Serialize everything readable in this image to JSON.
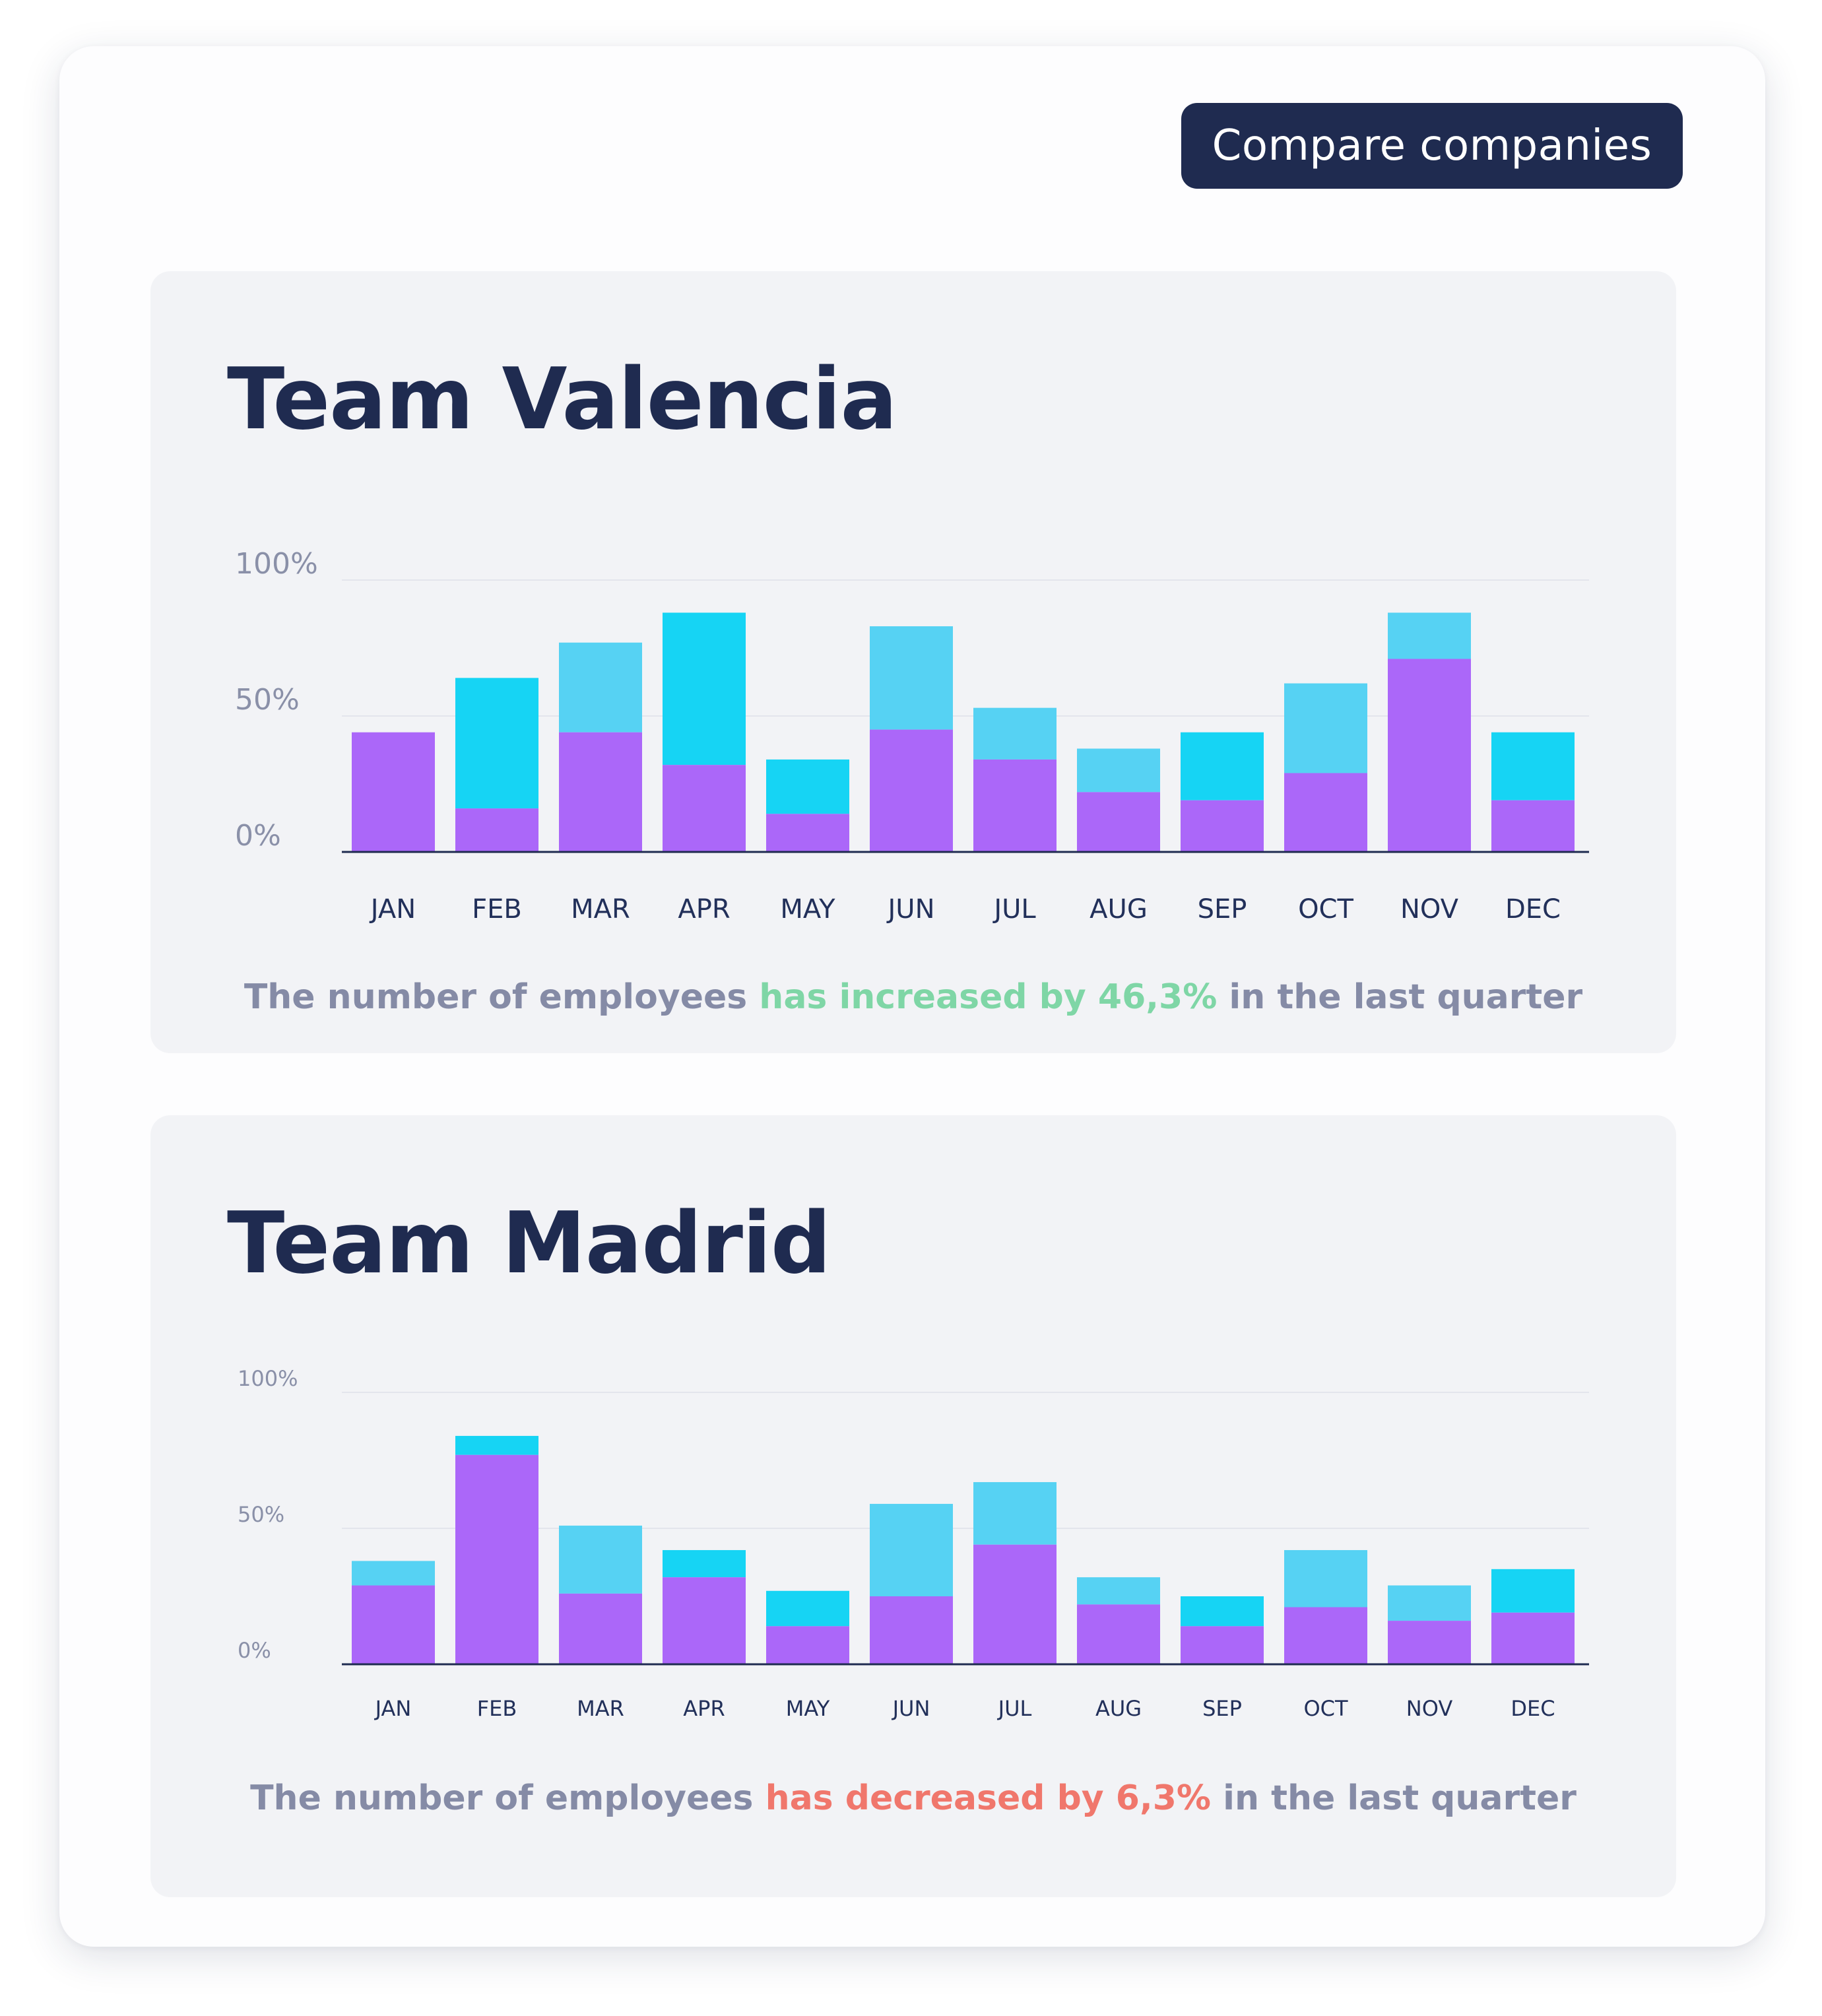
{
  "header": {
    "compare_button": "Compare companies"
  },
  "colors": {
    "primary": "#ab67f9",
    "secondary_light": "#56d2f3",
    "secondary_bright": "#16d4f4",
    "title": "#1f2b50",
    "increase": "#7fd6a6",
    "decrease": "#f0776c"
  },
  "panels": [
    {
      "title": "Team Valencia",
      "summary_prefix": "The number of employees ",
      "summary_highlight": "has increased by 46,3%",
      "summary_suffix": " in the last quarter"
    },
    {
      "title": "Team Madrid",
      "summary_prefix": "The number of employees ",
      "summary_highlight": "has decreased by 6,3%",
      "summary_suffix": " in the last quarter"
    }
  ],
  "chart_data": [
    {
      "type": "bar",
      "stacked": true,
      "title": "Team Valencia",
      "categories": [
        "JAN",
        "FEB",
        "MAR",
        "APR",
        "MAY",
        "JUN",
        "JUL",
        "AUG",
        "SEP",
        "OCT",
        "NOV",
        "DEC"
      ],
      "y_tick_labels": [
        "100%",
        "50%",
        "0%"
      ],
      "ylim": [
        0,
        100
      ],
      "grid": true,
      "series": [
        {
          "values": [
            44,
            16,
            44,
            32,
            14,
            45,
            34,
            22,
            19,
            29,
            71,
            19
          ],
          "color": "#ab67f9"
        },
        {
          "values": [
            0,
            48,
            33,
            56,
            20,
            38,
            19,
            16,
            25,
            33,
            17,
            25
          ],
          "color_by_category": [
            "#16d4f4",
            "#16d4f4",
            "#56d2f3",
            "#16d4f4",
            "#16d4f4",
            "#56d2f3",
            "#56d2f3",
            "#56d2f3",
            "#16d4f4",
            "#56d2f3",
            "#56d2f3",
            "#16d4f4"
          ]
        }
      ]
    },
    {
      "type": "bar",
      "stacked": true,
      "title": "Team Madrid",
      "categories": [
        "JAN",
        "FEB",
        "MAR",
        "APR",
        "MAY",
        "JUN",
        "JUL",
        "AUG",
        "SEP",
        "OCT",
        "NOV",
        "DEC"
      ],
      "y_tick_labels": [
        "100%",
        "50%",
        "0%"
      ],
      "ylim": [
        0,
        100
      ],
      "grid": true,
      "series": [
        {
          "values": [
            29,
            77,
            26,
            32,
            14,
            25,
            44,
            22,
            14,
            21,
            16,
            19
          ],
          "color": "#ab67f9"
        },
        {
          "values": [
            9,
            7,
            25,
            10,
            13,
            34,
            23,
            10,
            11,
            21,
            13,
            16
          ],
          "color_by_category": [
            "#56d2f3",
            "#16d4f4",
            "#56d2f3",
            "#16d4f4",
            "#16d4f4",
            "#56d2f3",
            "#56d2f3",
            "#56d2f3",
            "#16d4f4",
            "#56d2f3",
            "#56d2f3",
            "#16d4f4"
          ]
        }
      ]
    }
  ]
}
